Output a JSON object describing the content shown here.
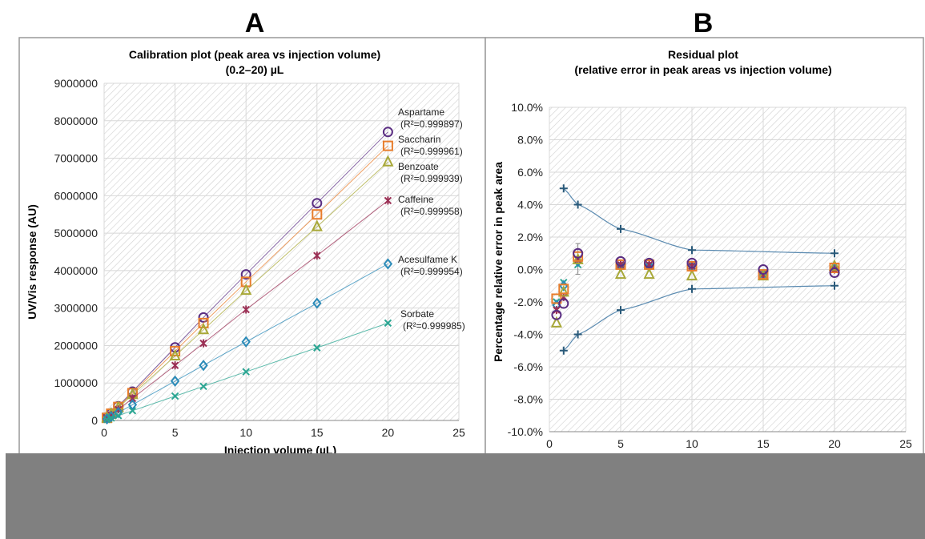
{
  "panels": [
    {
      "letter": "A",
      "chart_data": {
        "type": "line",
        "title": "Calibration plot (peak area vs injection volume)",
        "subtitle": "(0.2–20) µL",
        "xlabel": "Injection volume (µL)",
        "ylabel": "UV/Vis response (AU)",
        "xlim": [
          0,
          25
        ],
        "ylim": [
          0,
          9000000
        ],
        "xticks": [
          "0",
          "5",
          "10",
          "15",
          "20",
          "25"
        ],
        "yticks": [
          "0",
          "1000000",
          "2000000",
          "3000000",
          "4000000",
          "5000000",
          "6000000",
          "7000000",
          "8000000",
          "9000000"
        ],
        "grid": true,
        "x": [
          0.2,
          0.5,
          1,
          2,
          5,
          7,
          10,
          15,
          20
        ],
        "series": [
          {
            "name": "Aspartame",
            "r2": "(R²=0.999897)",
            "color": "#5a2d82",
            "marker": "circle",
            "values": [
              80000,
              190000,
              380000,
              770000,
              1950000,
              2750000,
              3900000,
              5800000,
              7700000
            ]
          },
          {
            "name": "Saccharin",
            "r2": "(R²=0.999961)",
            "color": "#e87d2c",
            "marker": "square",
            "values": [
              70000,
              180000,
              360000,
              730000,
              1850000,
              2600000,
              3700000,
              5500000,
              7330000
            ]
          },
          {
            "name": "Benzoate",
            "r2": "(R²=0.999939)",
            "color": "#a8a838",
            "marker": "triangle",
            "values": [
              68000,
              170000,
              340000,
              690000,
              1720000,
              2420000,
              3470000,
              5170000,
              6900000
            ]
          },
          {
            "name": "Caffeine",
            "r2": "(R²=0.999958)",
            "color": "#9b3055",
            "marker": "star",
            "values": [
              58000,
              147000,
              293000,
              590000,
              1470000,
              2060000,
              2960000,
              4400000,
              5870000
            ]
          },
          {
            "name": "Acesulfame K",
            "r2": "(R²=0.999954)",
            "color": "#2a8ab8",
            "marker": "diamond",
            "values": [
              42000,
              105000,
              210000,
              420000,
              1050000,
              1470000,
              2100000,
              3130000,
              4180000
            ]
          },
          {
            "name": "Sorbate",
            "r2": "(R²=0.999985)",
            "color": "#2aa592",
            "marker": "x",
            "values": [
              26000,
              65000,
              130000,
              260000,
              650000,
              910000,
              1300000,
              1940000,
              2600000
            ]
          }
        ]
      }
    },
    {
      "letter": "B",
      "chart_data": {
        "type": "scatter",
        "title": "Residual plot",
        "subtitle": "(relative error in peak areas vs injection volume)",
        "xlabel": "",
        "ylabel": "Percentage relative error in peak area",
        "xlim": [
          0,
          25
        ],
        "ylim": [
          -10,
          10
        ],
        "xticks": [
          "0",
          "5",
          "10",
          "15",
          "20",
          "25"
        ],
        "yticks": [
          "-10.0%",
          "-8.0%",
          "-6.0%",
          "-4.0%",
          "-2.0%",
          "0.0%",
          "2.0%",
          "4.0%",
          "6.0%",
          "8.0%",
          "10.0%"
        ],
        "grid": true,
        "x": [
          0.5,
          1,
          2,
          5,
          7,
          10,
          15,
          20
        ],
        "series": [
          {
            "name": "Aspartame",
            "color": "#5a2d82",
            "marker": "circle",
            "values": [
              -2.8,
              -2.1,
              1.0,
              0.5,
              0.4,
              0.4,
              0.0,
              -0.2
            ]
          },
          {
            "name": "Saccharin",
            "color": "#e87d2c",
            "marker": "square",
            "values": [
              -1.8,
              -1.2,
              0.8,
              0.3,
              0.3,
              0.2,
              -0.3,
              0.1
            ]
          },
          {
            "name": "Benzoate",
            "color": "#a8a838",
            "marker": "triangle",
            "values": [
              -3.3,
              -1.4,
              0.6,
              -0.3,
              -0.3,
              -0.4,
              -0.4,
              0.2
            ]
          },
          {
            "name": "Caffeine",
            "color": "#9b3055",
            "marker": "star",
            "values": [
              -2.5,
              -1.7,
              0.6,
              0.3,
              0.3,
              0.2,
              -0.3,
              0.0
            ]
          },
          {
            "name": "Acesulfame K",
            "color": "#2a8ab8",
            "marker": "diamond",
            "values": [
              -2.2,
              -1.0,
              0.5,
              0.2,
              0.2,
              0.2,
              -0.3,
              0.1
            ]
          },
          {
            "name": "Sorbate",
            "color": "#2aa592",
            "marker": "x",
            "values": [
              -2.0,
              -0.8,
              0.3,
              0.2,
              0.2,
              0.2,
              -0.3,
              0.2
            ]
          }
        ],
        "limits": {
          "color": "#2a5a7a",
          "x": [
            1,
            2,
            5,
            10,
            20
          ],
          "upper": [
            5.0,
            4.0,
            2.5,
            1.2,
            1.0
          ],
          "lower": [
            -5.0,
            -4.0,
            -2.5,
            -1.2,
            -1.0
          ]
        }
      }
    }
  ]
}
